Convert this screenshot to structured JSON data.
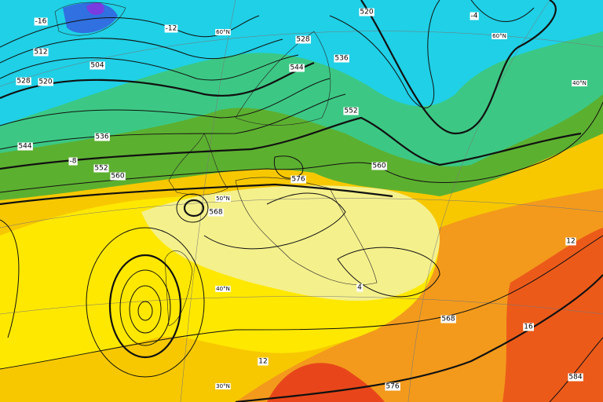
{
  "map": {
    "contour_labels": [
      "512",
      "504",
      "520",
      "528",
      "536",
      "544",
      "552",
      "560",
      "568",
      "576",
      "520",
      "528",
      "536",
      "544",
      "552",
      "560",
      "568",
      "576",
      "584"
    ],
    "temperature_labels": [
      "-16",
      "-12",
      "-8",
      "-4",
      "4",
      "12",
      "12",
      "16"
    ],
    "latitude_labels": [
      "60°N",
      "50°N",
      "40°N",
      "30°N",
      "60°N",
      "40°N"
    ]
  }
}
